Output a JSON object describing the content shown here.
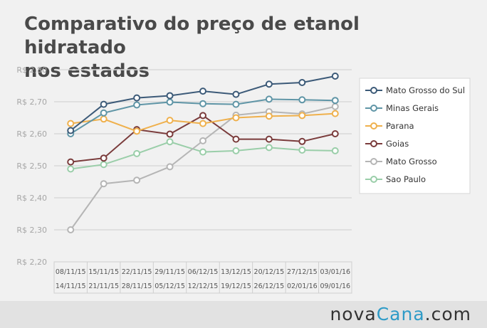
{
  "chart_title": [
    "Comparativo do preço de etanol hidratado",
    "nos estados"
  ],
  "brand": {
    "prefix": "nova",
    "accent_part": "Cana",
    "suffix": ".com"
  },
  "chart_data": {
    "type": "line",
    "categories": [
      [
        "08/11/15",
        "14/11/15"
      ],
      [
        "15/11/15",
        "21/11/15"
      ],
      [
        "22/11/15",
        "28/11/15"
      ],
      [
        "29/11/15",
        "05/12/15"
      ],
      [
        "06/12/15",
        "12/12/15"
      ],
      [
        "13/12/15",
        "19/12/15"
      ],
      [
        "20/12/15",
        "26/12/15"
      ],
      [
        "27/12/15",
        "02/01/16"
      ],
      [
        "03/01/16",
        "09/01/16"
      ]
    ],
    "ylim": [
      2.2,
      2.8
    ],
    "yticks": [
      2.2,
      2.3,
      2.4,
      2.5,
      2.6,
      2.7,
      2.8
    ],
    "ytick_labels": [
      "R$ 2,20",
      "R$ 2,30",
      "R$ 2,40",
      "R$ 2,50",
      "R$ 2,60",
      "R$ 2,70",
      "R$ 2,80"
    ],
    "grid": true,
    "legend_position": "right",
    "series": [
      {
        "name": "Mato Grosso do Sul",
        "color": "#3c5a78",
        "values": [
          2.61,
          2.692,
          2.712,
          2.719,
          2.733,
          2.723,
          2.755,
          2.76,
          2.78
        ]
      },
      {
        "name": "Minas Gerais",
        "color": "#5f95a6",
        "values": [
          2.6,
          2.665,
          2.69,
          2.699,
          2.694,
          2.692,
          2.708,
          2.706,
          2.704
        ]
      },
      {
        "name": "Parana",
        "color": "#efb04c",
        "values": [
          2.632,
          2.646,
          2.608,
          2.642,
          2.632,
          2.65,
          2.655,
          2.657,
          2.663
        ]
      },
      {
        "name": "Goias",
        "color": "#7a3b3b",
        "values": [
          2.512,
          2.524,
          2.613,
          2.599,
          2.657,
          2.583,
          2.583,
          2.576,
          2.6
        ]
      },
      {
        "name": "Mato Grosso",
        "color": "#b5b5b5",
        "values": [
          2.3,
          2.444,
          2.455,
          2.497,
          2.578,
          2.658,
          2.669,
          2.662,
          2.685
        ]
      },
      {
        "name": "Sao Paulo",
        "color": "#9acea9",
        "values": [
          2.49,
          2.504,
          2.538,
          2.575,
          2.543,
          2.547,
          2.557,
          2.549,
          2.547
        ]
      }
    ]
  }
}
